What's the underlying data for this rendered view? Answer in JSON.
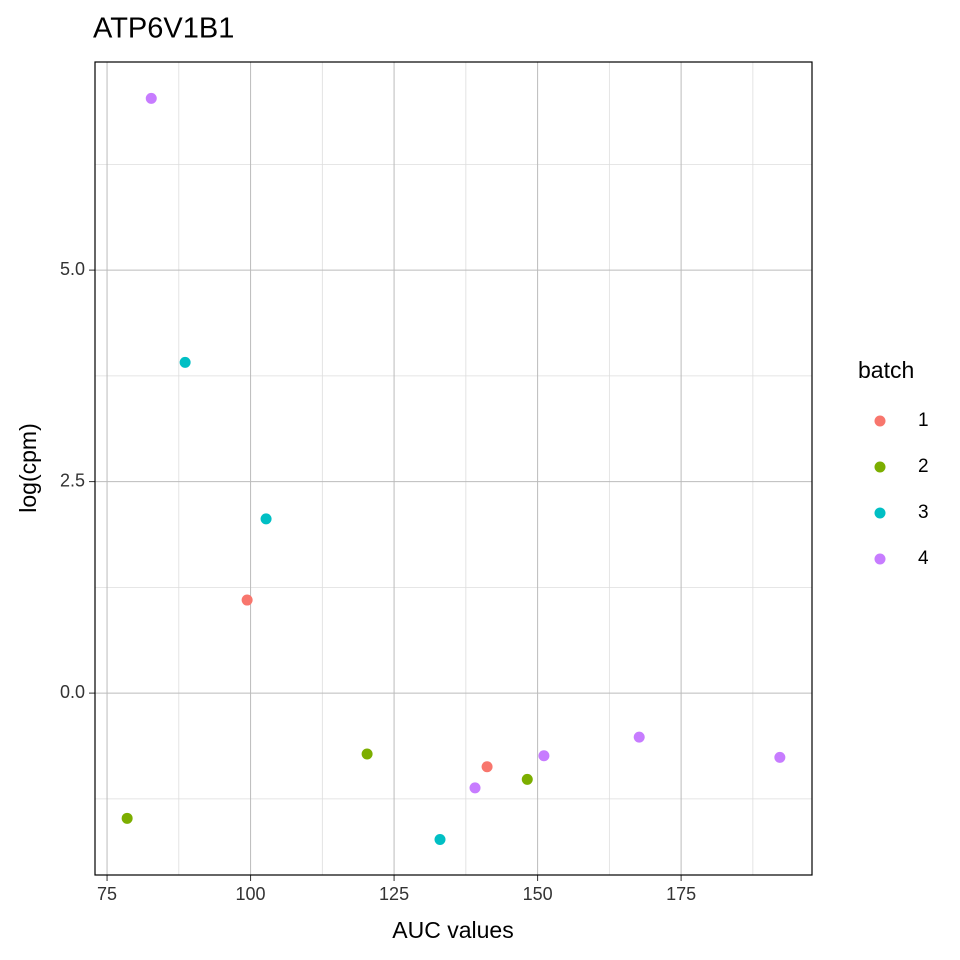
{
  "chart_data": {
    "type": "scatter",
    "title": "ATP6V1B1",
    "x_label": "AUC values",
    "y_label": "log(cpm)",
    "legend_title": "batch",
    "legend_position": "right",
    "grid": true,
    "xlim": [
      72.9,
      197.8
    ],
    "xticks": [
      75,
      100,
      125,
      150,
      175
    ],
    "ylim": [
      -2.15,
      7.46
    ],
    "yticks": [
      {
        "value": 0,
        "label": "0.0"
      },
      {
        "value": 2.5,
        "label": "2.5"
      },
      {
        "value": 5,
        "label": "5.0"
      }
    ],
    "series": [
      {
        "name": "1",
        "color": "#F8766D",
        "x": [
          99.4,
          141.2
        ],
        "values": [
          1.1,
          -0.87
        ]
      },
      {
        "name": "2",
        "color": "#7CAE00",
        "x": [
          78.5,
          120.3,
          148.2
        ],
        "values": [
          -1.48,
          -0.72,
          -1.02
        ]
      },
      {
        "name": "3",
        "color": "#00BFC4",
        "x": [
          88.6,
          102.7,
          133.0
        ],
        "values": [
          3.91,
          2.06,
          -1.73
        ]
      },
      {
        "name": "4",
        "color": "#C77CFF",
        "x": [
          82.7,
          139.1,
          151.1,
          167.7,
          192.2
        ],
        "values": [
          7.03,
          -1.12,
          -0.74,
          -0.52,
          -0.76
        ]
      }
    ]
  }
}
